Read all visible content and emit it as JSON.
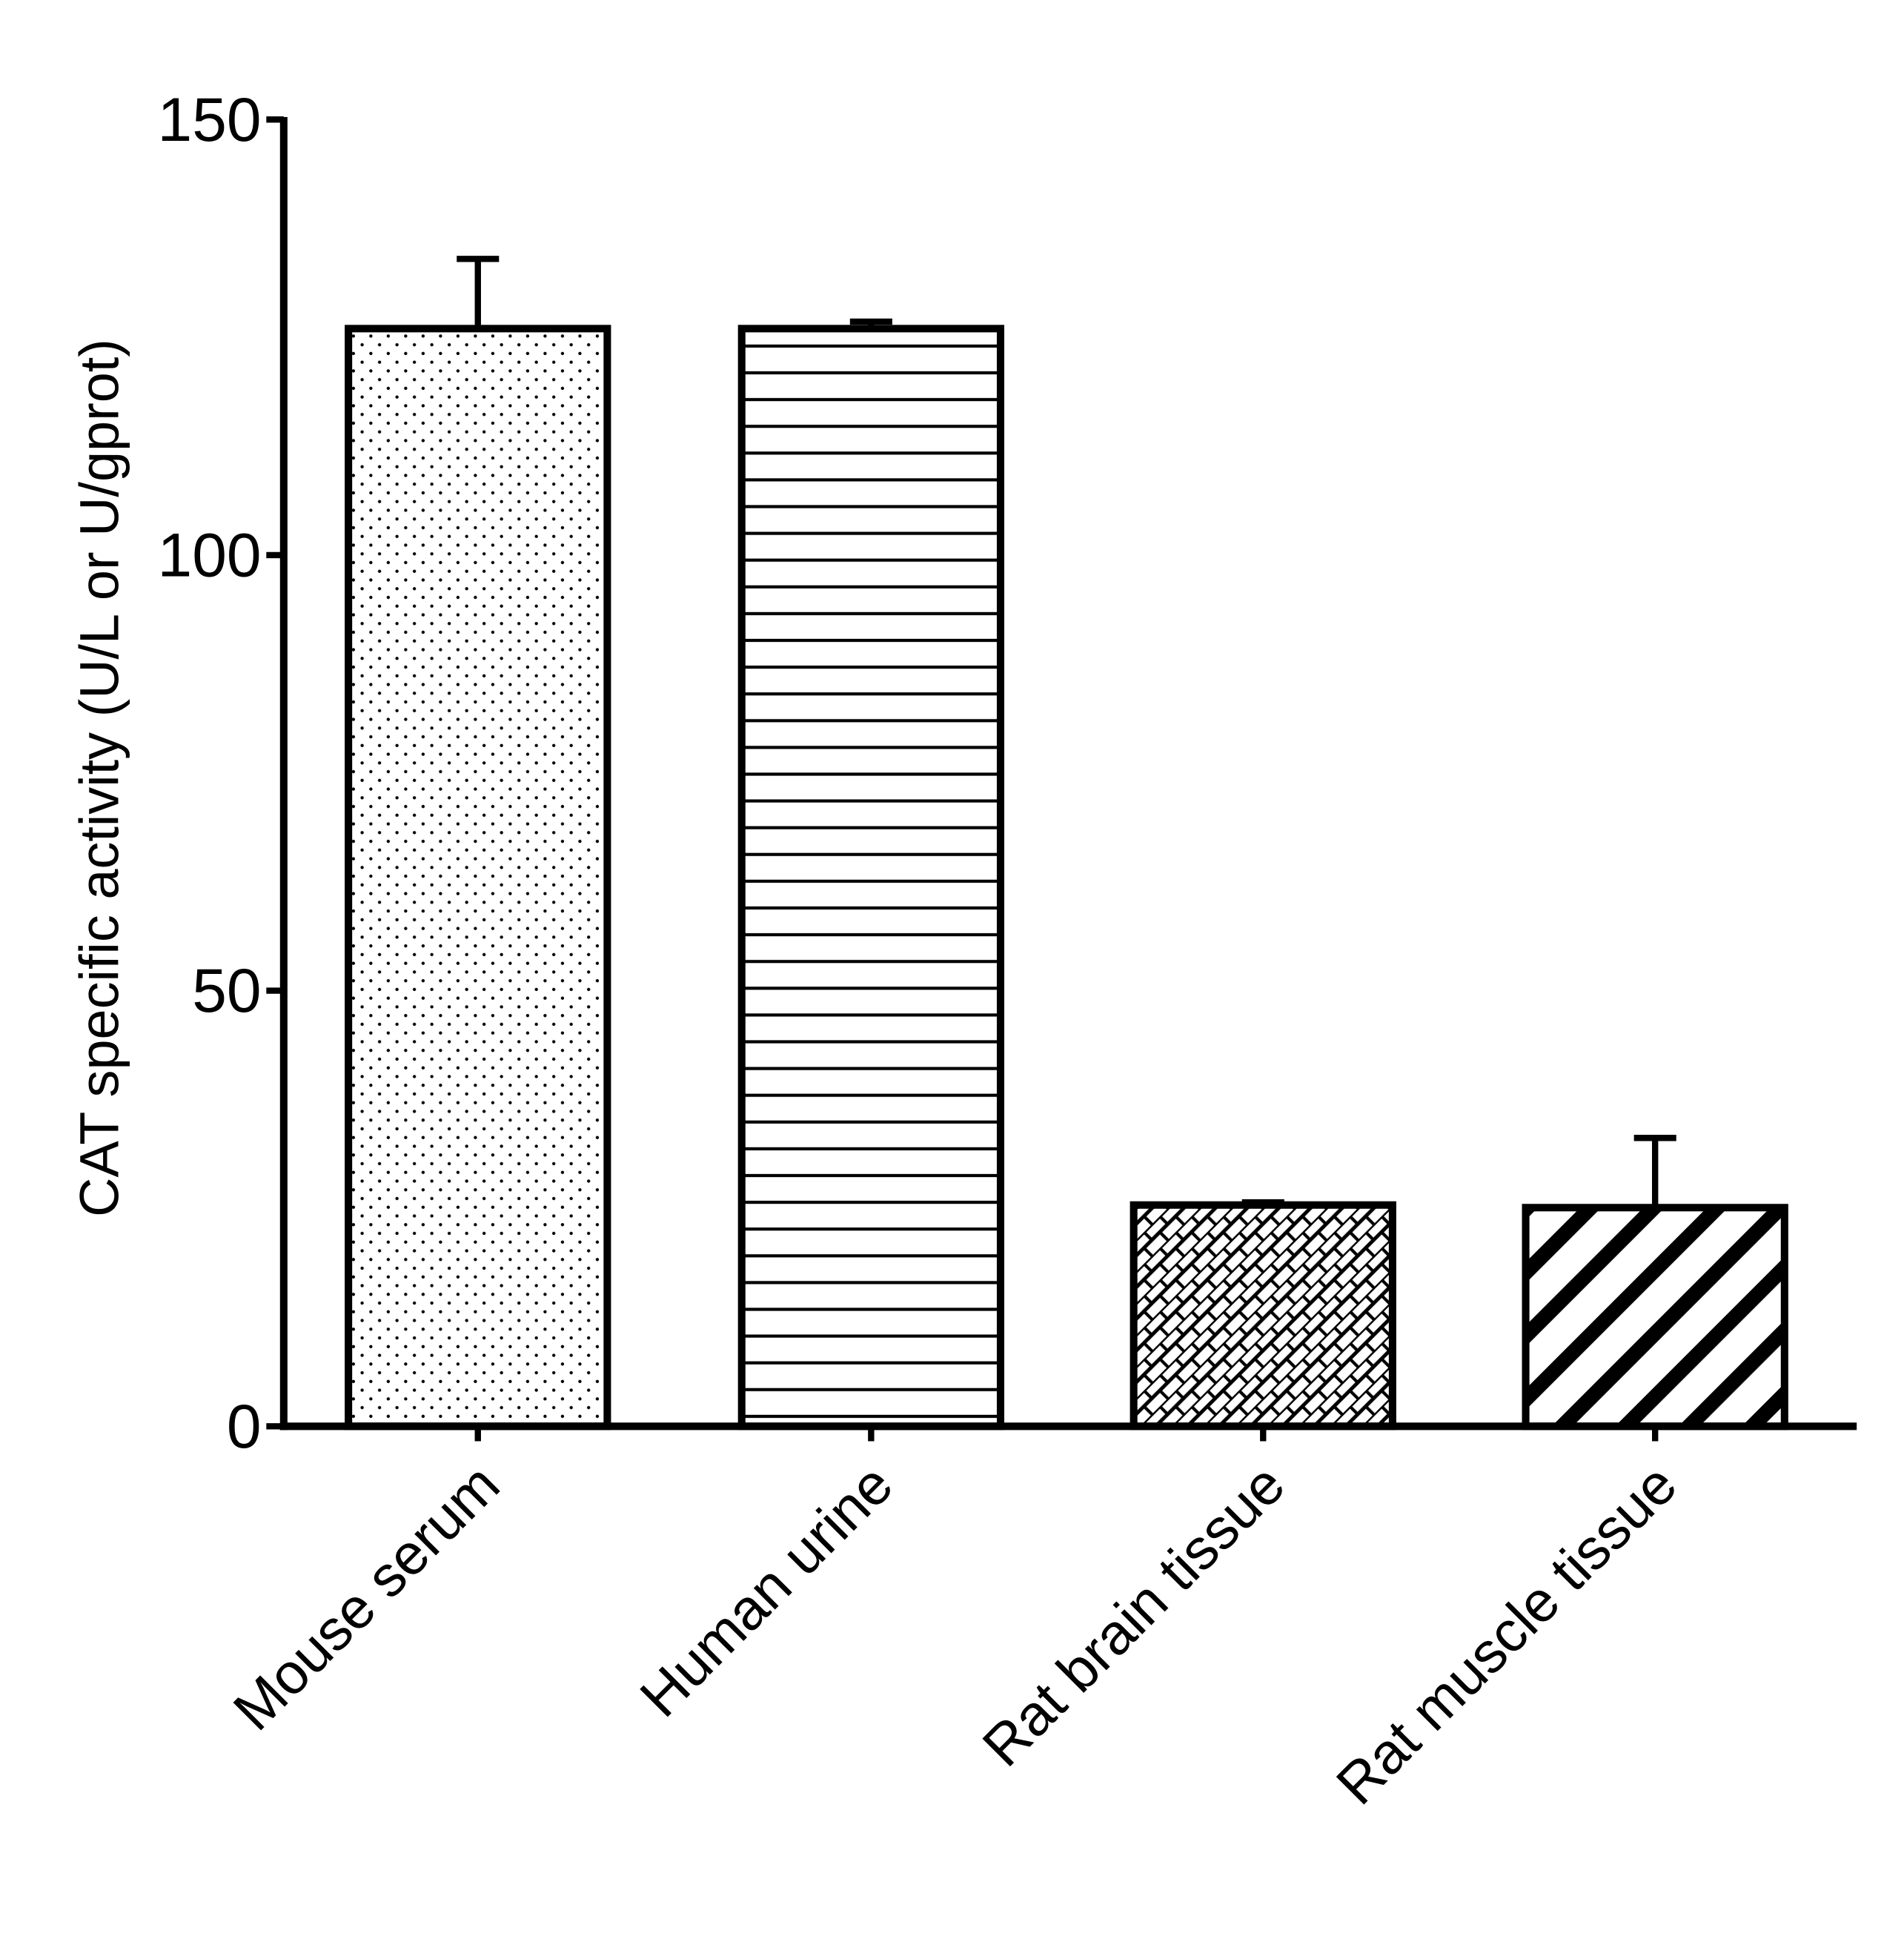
{
  "chart_data": {
    "type": "bar",
    "title": "",
    "xlabel": "",
    "ylabel": "CAT specific activity (U/L or U/gprot)",
    "categories": [
      "Mouse serum",
      "Human urine",
      "Rat brain tissue",
      "Rat muscle tissue"
    ],
    "values": [
      126,
      126,
      25.4,
      25.1
    ],
    "error_upper": [
      134,
      126.8,
      25.7,
      33.1
    ],
    "patterns": [
      "dots",
      "horizontal-lines",
      "crosshatch",
      "diagonal-stripes"
    ],
    "ylim": [
      0,
      150
    ],
    "yticks": [
      0,
      50,
      100,
      150
    ],
    "ytick_labels": [
      "0",
      "50",
      "100",
      "150"
    ],
    "grid": false,
    "legend": "none",
    "colors": {
      "stroke": "#000000",
      "fill": "#ffffff"
    }
  }
}
